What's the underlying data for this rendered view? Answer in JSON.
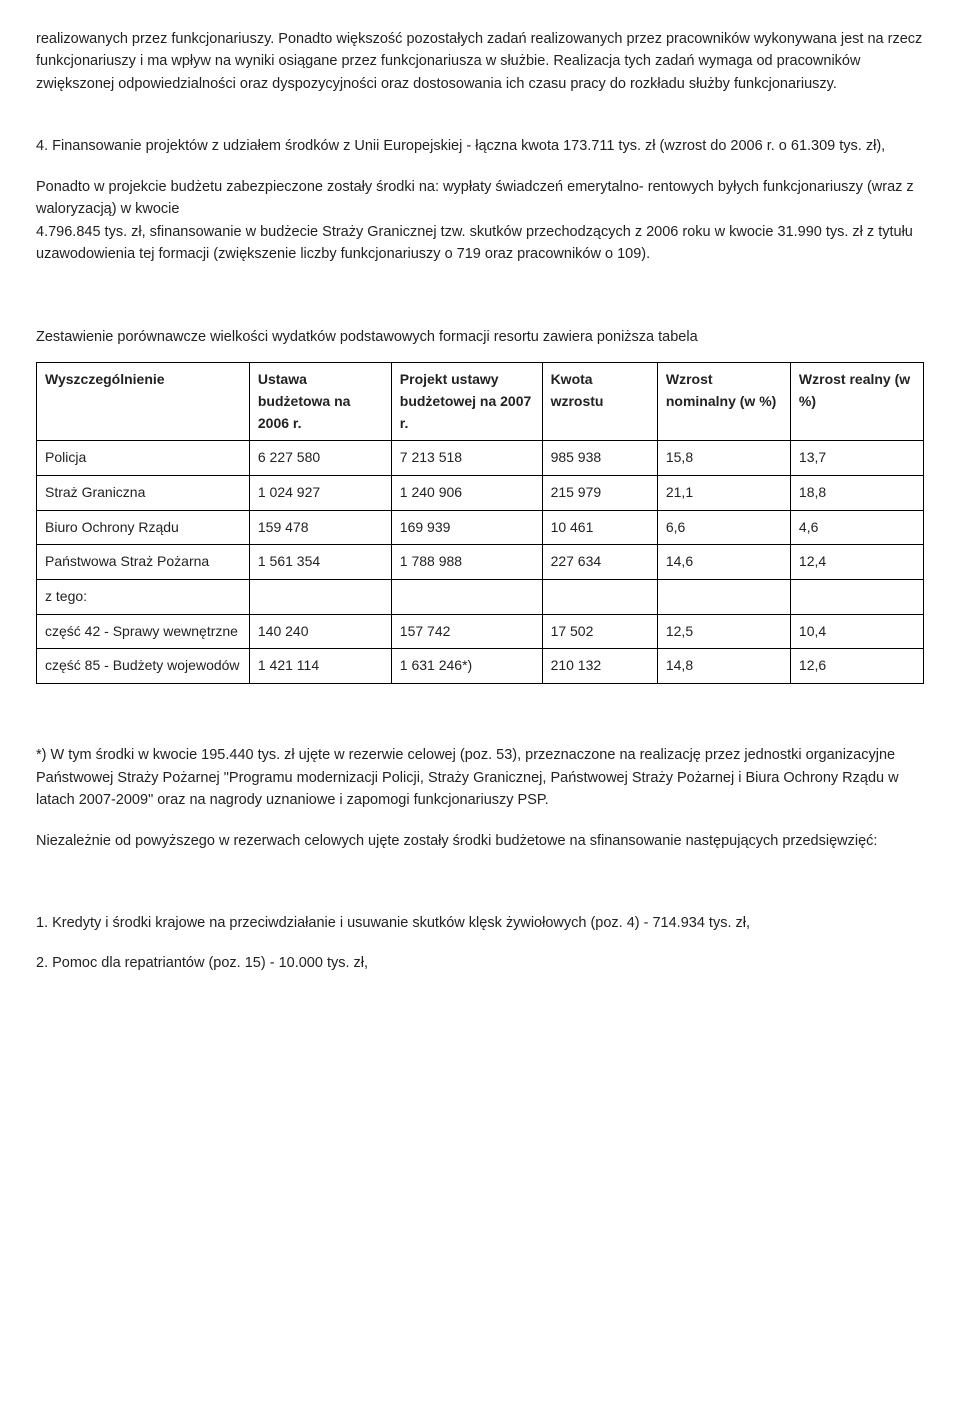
{
  "paragraphs": {
    "p1": "realizowanych przez funkcjonariuszy. Ponadto większość pozostałych zadań realizowanych przez pracowników wykonywana jest na rzecz funkcjonariuszy i ma wpływ na wyniki osiągane przez funkcjonariusza w służbie. Realizacja tych zadań wymaga od pracowników zwiększonej odpowiedzialności oraz dyspozycyjności oraz dostosowania ich czasu pracy do rozkładu służby funkcjonariuszy.",
    "p2": "4. Finansowanie projektów z udziałem środków z Unii Europejskiej - łączna kwota 173.711 tys. zł (wzrost do 2006 r. o 61.309 tys. zł),",
    "p3": "Ponadto w projekcie budżetu zabezpieczone zostały środki na: wypłaty świadczeń emerytalno- rentowych byłych funkcjonariuszy (wraz z waloryzacją) w kwocie",
    "p4": "4.796.845 tys. zł, sfinansowanie w budżecie Straży Granicznej tzw. skutków przechodzących z 2006 roku w kwocie 31.990 tys. zł z tytułu uzawodowienia tej formacji (zwiększenie liczby funkcjonariuszy o 719 oraz pracowników o 109).",
    "p5": "Zestawienie porównawcze wielkości wydatków podstawowych formacji resortu zawiera poniższa tabela",
    "p6": "*) W tym środki w kwocie 195.440 tys. zł ujęte w rezerwie celowej (poz. 53), przeznaczone na realizację przez jednostki organizacyjne Państwowej Straży Pożarnej \"Programu modernizacji Policji, Straży Granicznej, Państwowej Straży Pożarnej i Biura Ochrony Rządu w latach 2007-2009\" oraz na nagrody uznaniowe i zapomogi funkcjonariuszy PSP.",
    "p7": "Niezależnie od powyższego w rezerwach celowych ujęte zostały środki budżetowe na sfinansowanie następujących przedsięwzięć:",
    "p8": "1. Kredyty i środki krajowe na przeciwdziałanie i usuwanie skutków klęsk żywiołowych (poz. 4) - 714.934 tys. zł,",
    "p9": "2. Pomoc dla repatriantów (poz. 15) - 10.000 tys. zł,"
  },
  "table": {
    "columns": [
      "Wyszczególnienie",
      "Ustawa budżetowa na 2006 r.",
      "Projekt ustawy budżetowej na 2007 r.",
      "Kwota wzrostu",
      "Wzrost nominalny (w %)",
      "Wzrost realny (w %)"
    ],
    "rows": [
      [
        "Policja",
        "6 227 580",
        "7 213 518",
        "985 938",
        "15,8",
        "13,7"
      ],
      [
        "Straż Graniczna",
        "1 024 927",
        "1 240 906",
        "215 979",
        "21,1",
        "18,8"
      ],
      [
        "Biuro Ochrony Rządu",
        "159 478",
        "169 939",
        "10 461",
        "6,6",
        "4,6"
      ],
      [
        "Państwowa Straż Pożarna",
        "1 561 354",
        "1 788 988",
        "227 634",
        "14,6",
        "12,4"
      ],
      [
        "z tego:",
        "",
        "",
        "",
        "",
        ""
      ],
      [
        "część 42 - Sprawy wewnętrzne",
        "140 240",
        "157 742",
        "17 502",
        "12,5",
        "10,4"
      ],
      [
        "część 85 - Budżety wojewodów",
        "1 421 114",
        "1 631 246*)",
        "210 132",
        "14,8",
        "12,6"
      ]
    ],
    "col_widths": [
      "24%",
      "16%",
      "17%",
      "13%",
      "15%",
      "15%"
    ]
  }
}
